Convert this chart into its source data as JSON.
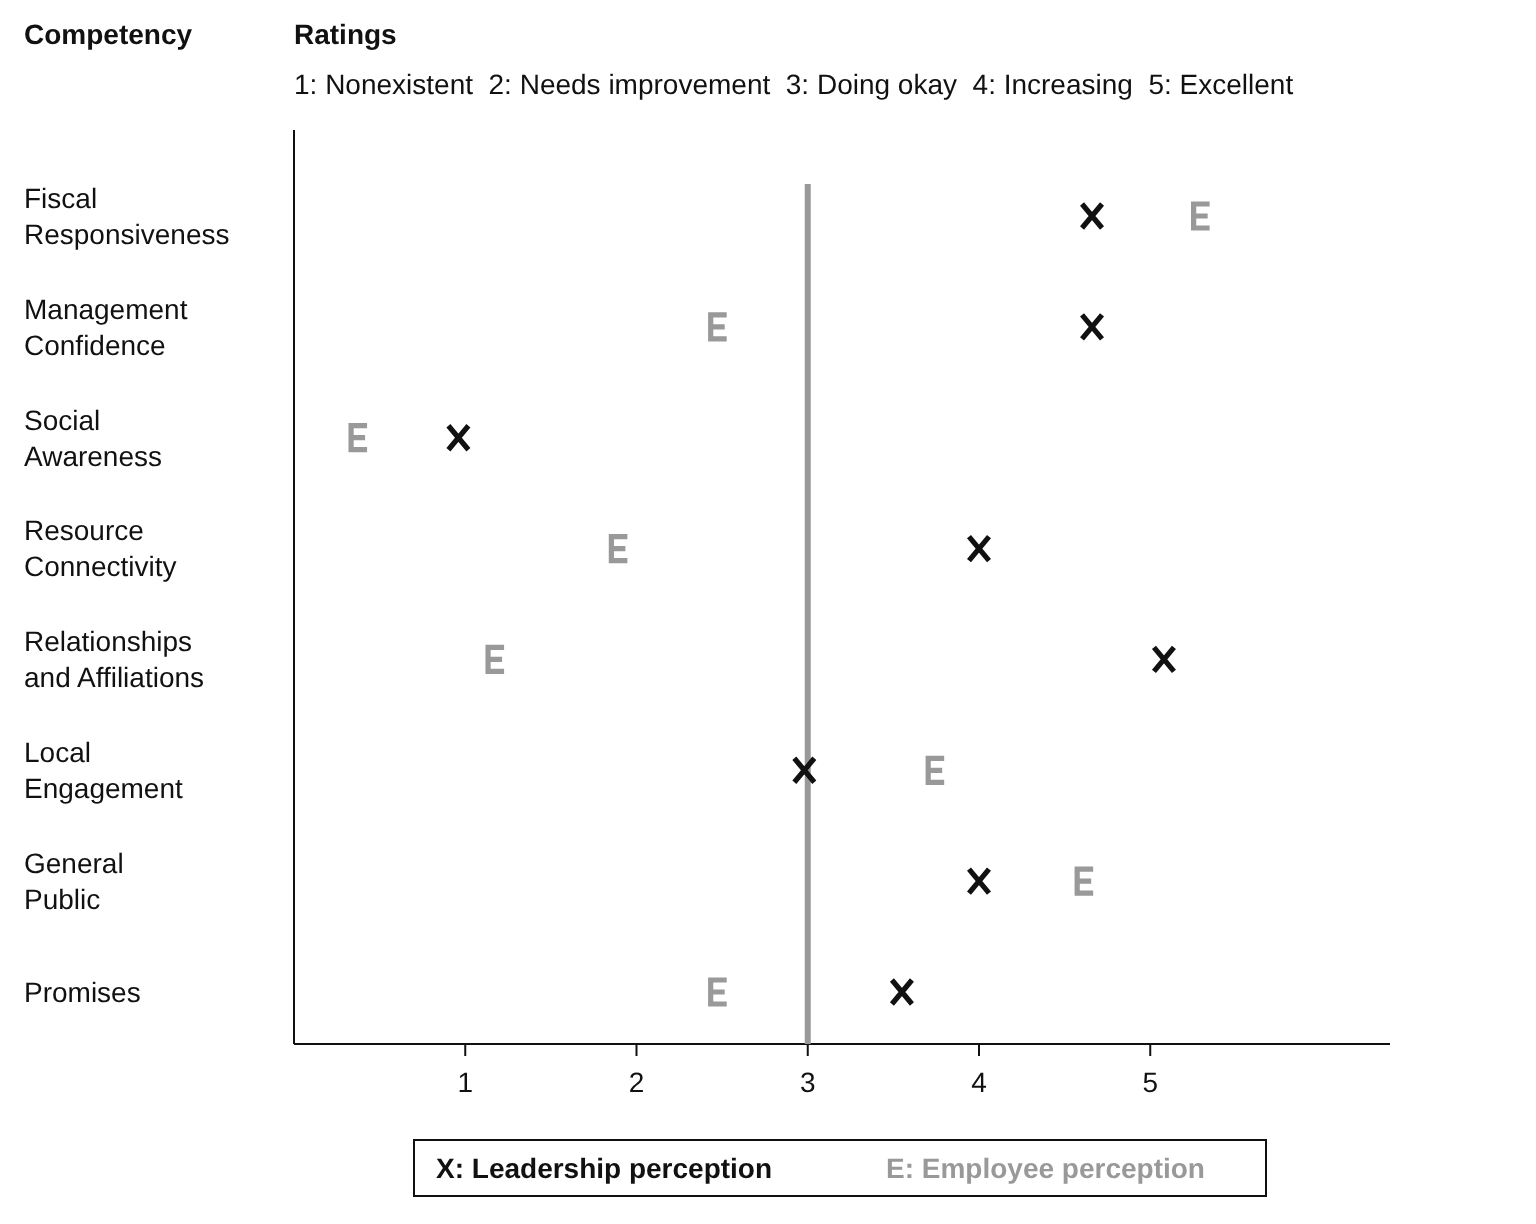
{
  "chart_data": {
    "type": "scatter",
    "orientation": "horizontal",
    "title": "Ratings",
    "ylabel": "Competency",
    "subtitle": "1: Nonexistent  2: Needs improvement  3: Doing okay  4: Increasing  5: Excellent",
    "categories": [
      "Fiscal Responsiveness",
      "Management Confidence",
      "Social Awareness",
      "Resource Connectivity",
      "Relationships and Affiliations",
      "Local Engagement",
      "General Public",
      "Promises"
    ],
    "series": [
      {
        "name": "X: Leadership perception",
        "color": "#111111",
        "marker": "cross",
        "values": [
          4.66,
          4.66,
          0.96,
          4.0,
          5.08,
          2.98,
          4.0,
          3.55
        ]
      },
      {
        "name": "E: Employee perception",
        "color": "#999999",
        "values": [
          5.3,
          2.48,
          0.38,
          1.9,
          1.18,
          3.75,
          4.62,
          2.48
        ]
      }
    ],
    "xlim": [
      0,
      6.4
    ],
    "xticks": [
      1,
      2,
      3,
      4,
      5
    ],
    "ref_lines": [
      {
        "axis": "x",
        "value": 3,
        "color": "#999999"
      }
    ],
    "legend": "bottom",
    "grid": false
  }
}
